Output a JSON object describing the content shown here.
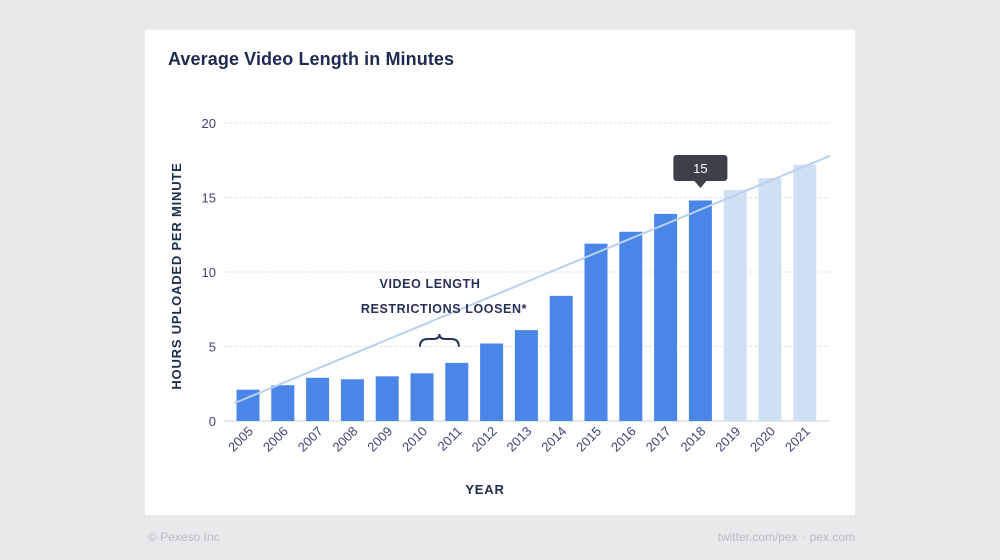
{
  "footer": {
    "copyright": "© Pexeso Inc",
    "twitter": "twitter.com/pex",
    "site": "pex.com"
  },
  "chart_data": {
    "type": "bar",
    "title": "Average Video Length in Minutes",
    "xlabel": "YEAR",
    "ylabel": "HOURS UPLOADED PER MINUTE",
    "ylim": [
      0,
      20
    ],
    "yticks": [
      0,
      5,
      10,
      15,
      20
    ],
    "grid": true,
    "categories": [
      "2005",
      "2006",
      "2007",
      "2008",
      "2009",
      "2010",
      "2011",
      "2012",
      "2013",
      "2014",
      "2015",
      "2016",
      "2017",
      "2018",
      "2019",
      "2020",
      "2021"
    ],
    "values": [
      2.1,
      2.4,
      2.9,
      2.8,
      3.0,
      3.2,
      3.9,
      5.2,
      6.1,
      8.4,
      11.9,
      12.7,
      13.9,
      14.8,
      15.5,
      16.3,
      17.2
    ],
    "projected_categories": [
      "2019",
      "2020",
      "2021"
    ],
    "trendline": {
      "start": 1.2,
      "end": 17.8
    },
    "annotation": {
      "line1": "VIDEO LENGTH",
      "line2": "RESTRICTIONS LOOSEN*",
      "categories": [
        "2010",
        "2011"
      ]
    },
    "callout": {
      "category": "2018",
      "label": "15"
    },
    "colors": {
      "bar": "#4a86e8",
      "projected_bar": "#cfe0f3",
      "trendline": "#b9d0ee",
      "grid": "#dde4ee",
      "callout_bg": "#3c4048"
    }
  }
}
